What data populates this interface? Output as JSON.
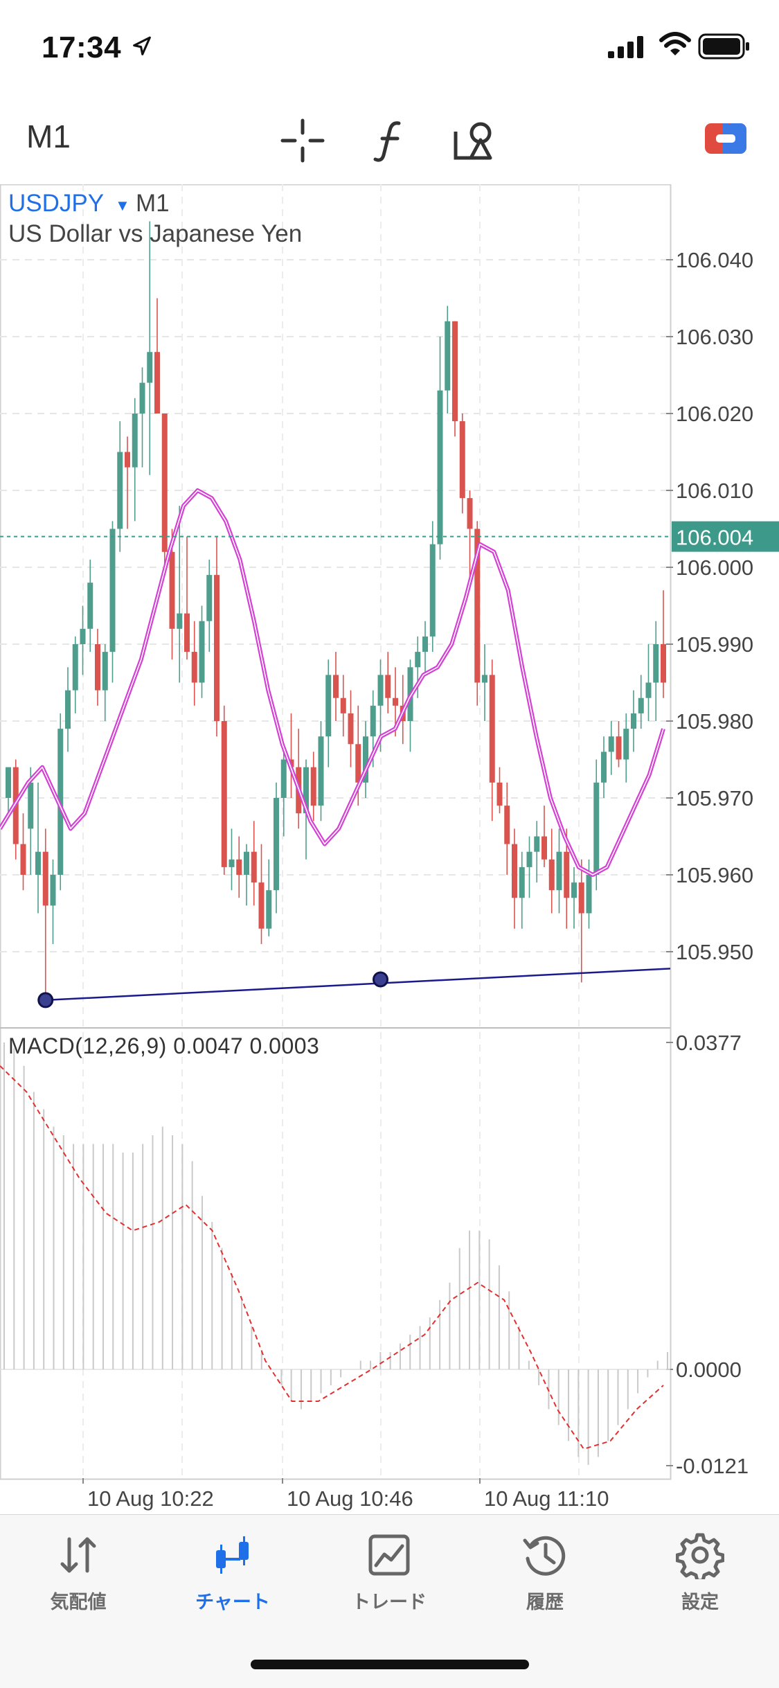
{
  "status_bar": {
    "time": "17:34"
  },
  "toolbar": {
    "timeframe": "M1"
  },
  "chart_header": {
    "symbol": "USDJPY",
    "timeframe": "M1",
    "description": "US Dollar vs Japanese Yen"
  },
  "price_axis": {
    "ticks": [
      "106.040",
      "106.030",
      "106.020",
      "106.010",
      "106.000",
      "105.990",
      "105.980",
      "105.970",
      "105.960",
      "105.950"
    ],
    "current_price": "106.004"
  },
  "macd": {
    "label": "MACD(12,26,9)  0.0047  0.0003",
    "axis_ticks": [
      "0.0377",
      "0.0000",
      "-0.0121"
    ]
  },
  "time_axis": {
    "labels": [
      "10 Aug 10:22",
      "10 Aug 10:46",
      "10 Aug 11:10"
    ]
  },
  "tabs": [
    {
      "label": "気配値",
      "icon": "quotes-icon",
      "active": false
    },
    {
      "label": "チャート",
      "icon": "chart-icon",
      "active": true
    },
    {
      "label": "トレード",
      "icon": "trade-icon",
      "active": false
    },
    {
      "label": "履歴",
      "icon": "history-icon",
      "active": false
    },
    {
      "label": "設定",
      "icon": "settings-icon",
      "active": false
    }
  ],
  "colors": {
    "up": "#4f9d8d",
    "down": "#d9534f",
    "ma": "#d43fd4",
    "trendline": "#1a1a8c",
    "accent": "#1e6fe8",
    "signal": "#e03030"
  },
  "chart_data": {
    "type": "candlestick",
    "price_range": [
      105.943,
      106.045
    ],
    "current_price": 106.004,
    "candles": [
      [
        105.97,
        105.974,
        105.968,
        105.974
      ],
      [
        105.974,
        105.975,
        105.962,
        105.964
      ],
      [
        105.964,
        105.968,
        105.958,
        105.96
      ],
      [
        105.966,
        105.974,
        105.96,
        105.972
      ],
      [
        105.96,
        105.972,
        105.955,
        105.963
      ],
      [
        105.963,
        105.966,
        105.943,
        105.956
      ],
      [
        105.956,
        105.962,
        105.951,
        105.96
      ],
      [
        105.96,
        105.981,
        105.958,
        105.979
      ],
      [
        105.979,
        105.987,
        105.976,
        105.984
      ],
      [
        105.984,
        105.991,
        105.981,
        105.99
      ],
      [
        105.99,
        105.995,
        105.986,
        105.992
      ],
      [
        105.992,
        106.001,
        105.989,
        105.998
      ],
      [
        105.99,
        105.992,
        105.982,
        105.984
      ],
      [
        105.984,
        105.99,
        105.98,
        105.989
      ],
      [
        105.989,
        106.006,
        105.985,
        106.005
      ],
      [
        106.005,
        106.019,
        106.002,
        106.015
      ],
      [
        106.015,
        106.017,
        106.005,
        106.013
      ],
      [
        106.013,
        106.022,
        106.006,
        106.02
      ],
      [
        106.02,
        106.026,
        106.013,
        106.024
      ],
      [
        106.024,
        106.045,
        106.012,
        106.028
      ],
      [
        106.028,
        106.035,
        106.02,
        106.02
      ],
      [
        106.02,
        106.02,
        106.0,
        106.002
      ],
      [
        106.002,
        106.005,
        105.988,
        105.992
      ],
      [
        105.992,
        106.008,
        105.985,
        105.994
      ],
      [
        105.994,
        106.004,
        105.988,
        105.989
      ],
      [
        105.989,
        105.993,
        105.982,
        105.985
      ],
      [
        105.985,
        105.995,
        105.983,
        105.993
      ],
      [
        105.993,
        106.001,
        105.989,
        105.999
      ],
      [
        105.999,
        106.004,
        105.978,
        105.98
      ],
      [
        105.98,
        105.982,
        105.96,
        105.961
      ],
      [
        105.961,
        105.966,
        105.958,
        105.962
      ],
      [
        105.962,
        105.965,
        105.957,
        105.96
      ],
      [
        105.96,
        105.964,
        105.956,
        105.963
      ],
      [
        105.963,
        105.967,
        105.956,
        105.959
      ],
      [
        105.959,
        105.964,
        105.951,
        105.953
      ],
      [
        105.953,
        105.962,
        105.952,
        105.958
      ],
      [
        105.958,
        105.972,
        105.955,
        105.97
      ],
      [
        105.97,
        105.976,
        105.965,
        105.975
      ],
      [
        105.975,
        105.981,
        105.97,
        105.974
      ],
      [
        105.974,
        105.979,
        105.966,
        105.968
      ],
      [
        105.968,
        105.975,
        105.962,
        105.974
      ],
      [
        105.974,
        105.976,
        105.967,
        105.969
      ],
      [
        105.969,
        105.98,
        105.967,
        105.978
      ],
      [
        105.978,
        105.988,
        105.974,
        105.986
      ],
      [
        105.986,
        105.989,
        105.98,
        105.983
      ],
      [
        105.983,
        105.986,
        105.978,
        105.981
      ],
      [
        105.981,
        105.984,
        105.974,
        105.977
      ],
      [
        105.977,
        105.982,
        105.969,
        105.972
      ],
      [
        105.972,
        105.98,
        105.97,
        105.978
      ],
      [
        105.978,
        105.984,
        105.974,
        105.982
      ],
      [
        105.982,
        105.988,
        105.976,
        105.986
      ],
      [
        105.986,
        105.989,
        105.981,
        105.983
      ],
      [
        105.983,
        105.987,
        105.978,
        105.982
      ],
      [
        105.982,
        105.986,
        105.977,
        105.98
      ],
      [
        105.98,
        105.988,
        105.976,
        105.987
      ],
      [
        105.987,
        105.991,
        105.983,
        105.989
      ],
      [
        105.989,
        105.993,
        105.986,
        105.991
      ],
      [
        105.991,
        106.006,
        105.989,
        106.003
      ],
      [
        106.003,
        106.03,
        106.001,
        106.023
      ],
      [
        106.023,
        106.034,
        106.02,
        106.032
      ],
      [
        106.032,
        106.032,
        106.017,
        106.019
      ],
      [
        106.019,
        106.02,
        106.007,
        106.009
      ],
      [
        106.009,
        106.01,
        105.998,
        106.005
      ],
      [
        106.005,
        106.006,
        105.982,
        105.985
      ],
      [
        105.985,
        105.99,
        105.98,
        105.986
      ],
      [
        105.986,
        105.988,
        105.967,
        105.972
      ],
      [
        105.972,
        105.974,
        105.968,
        105.969
      ],
      [
        105.969,
        105.972,
        105.96,
        105.964
      ],
      [
        105.964,
        105.966,
        105.953,
        105.957
      ],
      [
        105.957,
        105.963,
        105.953,
        105.961
      ],
      [
        105.961,
        105.965,
        105.957,
        105.963
      ],
      [
        105.963,
        105.967,
        105.959,
        105.965
      ],
      [
        105.965,
        105.969,
        105.961,
        105.962
      ],
      [
        105.962,
        105.966,
        105.955,
        105.958
      ],
      [
        105.958,
        105.966,
        105.955,
        105.963
      ],
      [
        105.963,
        105.966,
        105.953,
        105.957
      ],
      [
        105.957,
        105.961,
        105.953,
        105.959
      ],
      [
        105.959,
        105.962,
        105.946,
        105.955
      ],
      [
        105.955,
        105.962,
        105.953,
        105.96
      ],
      [
        105.96,
        105.975,
        105.958,
        105.972
      ],
      [
        105.972,
        105.978,
        105.97,
        105.976
      ],
      [
        105.976,
        105.98,
        105.973,
        105.978
      ],
      [
        105.978,
        105.98,
        105.974,
        105.975
      ],
      [
        105.975,
        105.981,
        105.972,
        105.979
      ],
      [
        105.979,
        105.984,
        105.976,
        105.981
      ],
      [
        105.981,
        105.986,
        105.979,
        105.983
      ],
      [
        105.983,
        105.99,
        105.98,
        105.985
      ],
      [
        105.985,
        105.993,
        105.98,
        105.99
      ],
      [
        105.99,
        105.997,
        105.983,
        105.985
      ]
    ],
    "ma_series": [
      105.966,
      105.969,
      105.972,
      105.974,
      105.97,
      105.966,
      105.968,
      105.973,
      105.978,
      105.983,
      105.988,
      105.995,
      106.002,
      106.008,
      106.01,
      106.009,
      106.006,
      106.001,
      105.993,
      105.984,
      105.977,
      105.972,
      105.967,
      105.964,
      105.966,
      105.97,
      105.974,
      105.978,
      105.979,
      105.983,
      105.986,
      105.987,
      105.99,
      105.996,
      106.003,
      106.002,
      105.997,
      105.987,
      105.978,
      105.97,
      105.965,
      105.961,
      105.96,
      105.961,
      105.965,
      105.969,
      105.973,
      105.979
    ],
    "trendline": {
      "start": {
        "bar": 5,
        "price": 105.9437
      },
      "mid": {
        "bar": 50,
        "price": 105.9464
      },
      "end": {
        "bar": 89,
        "price": 105.9478
      }
    },
    "macd": {
      "range": [
        -0.0121,
        0.0377
      ],
      "histogram_left": [
        0.0377,
        0.037,
        0.035,
        0.032,
        0.03,
        0.028,
        0.027,
        0.026,
        0.026,
        0.026,
        0.026,
        0.026,
        0.025,
        0.025,
        0.026,
        0.027,
        0.028,
        0.027,
        0.026,
        0.024,
        0.02,
        0.017,
        0.014,
        0.011,
        0.008,
        0.005,
        0.002,
        0.0,
        -0.002,
        -0.004,
        -0.005,
        -0.004,
        -0.003,
        -0.002,
        -0.001,
        0.0,
        0.001,
        0.001,
        0.002,
        0.002,
        0.003,
        0.004,
        0.005,
        0.006,
        0.008,
        0.01,
        0.014,
        0.016,
        0.016,
        0.015,
        0.012,
        0.009,
        0.005,
        0.001,
        -0.002,
        -0.005,
        -0.007,
        -0.009,
        -0.011,
        -0.012,
        -0.011,
        -0.009,
        -0.007,
        -0.005,
        -0.003,
        -0.001,
        0.001,
        0.002
      ],
      "signal": [
        0.035,
        0.032,
        0.027,
        0.022,
        0.018,
        0.016,
        0.017,
        0.019,
        0.016,
        0.009,
        0.001,
        -0.004,
        -0.004,
        -0.002,
        0.0,
        0.002,
        0.004,
        0.008,
        0.01,
        0.008,
        0.002,
        -0.005,
        -0.01,
        -0.009,
        -0.005,
        -0.002
      ]
    }
  }
}
